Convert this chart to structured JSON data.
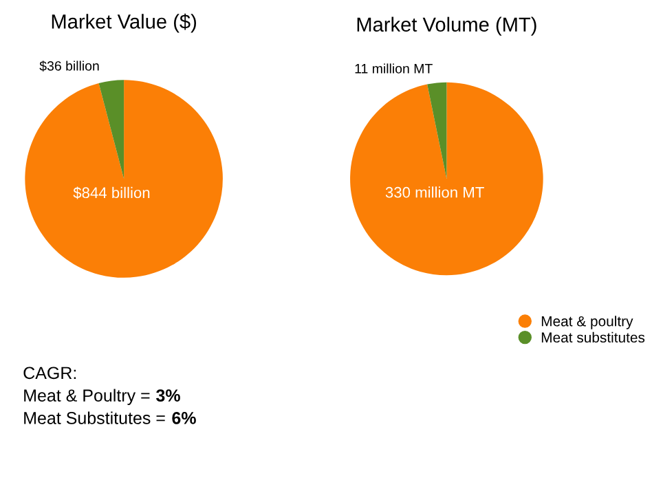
{
  "chart_data": [
    {
      "type": "pie",
      "title": "Market Value ($)",
      "categories": [
        null,
        null
      ],
      "values": [
        844,
        36
      ],
      "colors": [
        "#fb7f06",
        "#5a8f28"
      ],
      "value_labels": [
        "$844 billion",
        "$36 billion"
      ]
    },
    {
      "type": "pie",
      "title": "Market Volume (MT)",
      "categories": [
        "Meat & poultry",
        "Meat substitutes"
      ],
      "values": [
        330,
        11
      ],
      "colors": [
        "#fb7f06",
        "#5a8f28"
      ],
      "value_labels": [
        "330 million MT",
        "11 million MT"
      ],
      "legend": "bottom right"
    },
    {
      "type": "other",
      "annotations": [
        "CAGR:",
        "Meat & Poultry = 3%",
        "Meat Substitutes = 6%"
      ]
    }
  ]
}
